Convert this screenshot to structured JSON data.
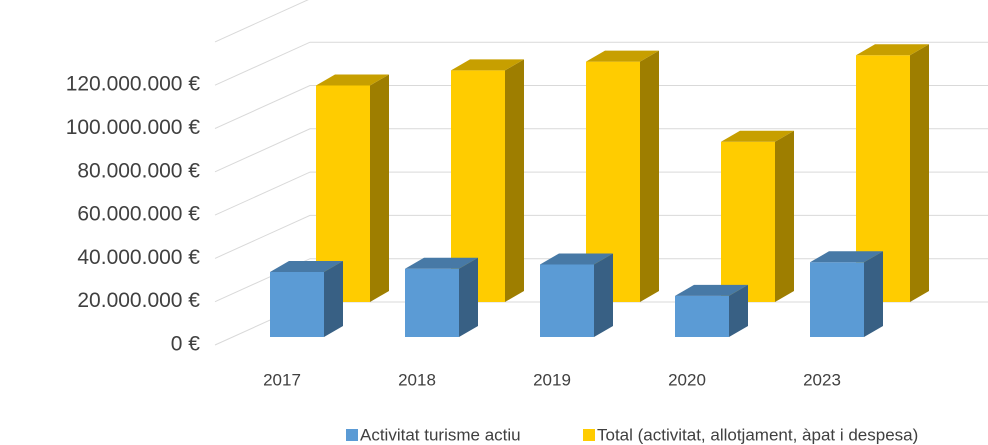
{
  "chart_data": {
    "type": "bar3d",
    "categories": [
      "2017",
      "2018",
      "2019",
      "2020",
      "2023"
    ],
    "series": [
      {
        "name": "Activitat turisme actiu",
        "color": "#5b9bd5",
        "values": [
          30000000,
          31500000,
          33500000,
          19000000,
          34500000
        ]
      },
      {
        "name": "Total (activitat, allotjament, àpat i despesa)",
        "color": "#ffcc00",
        "values": [
          100000000,
          107000000,
          111000000,
          74000000,
          114000000
        ]
      }
    ],
    "ylim": [
      0,
      140000000
    ],
    "yticks": [
      {
        "value": 0,
        "label": "0 €"
      },
      {
        "value": 20000000,
        "label": "20.000.000 €"
      },
      {
        "value": 40000000,
        "label": "40.000.000 €"
      },
      {
        "value": 60000000,
        "label": "60.000.000 €"
      },
      {
        "value": 80000000,
        "label": "80.000.000 €"
      },
      {
        "value": 100000000,
        "label": "100.000.000 €"
      },
      {
        "value": 120000000,
        "label": "120.000.000 €"
      }
    ],
    "grid": true
  }
}
